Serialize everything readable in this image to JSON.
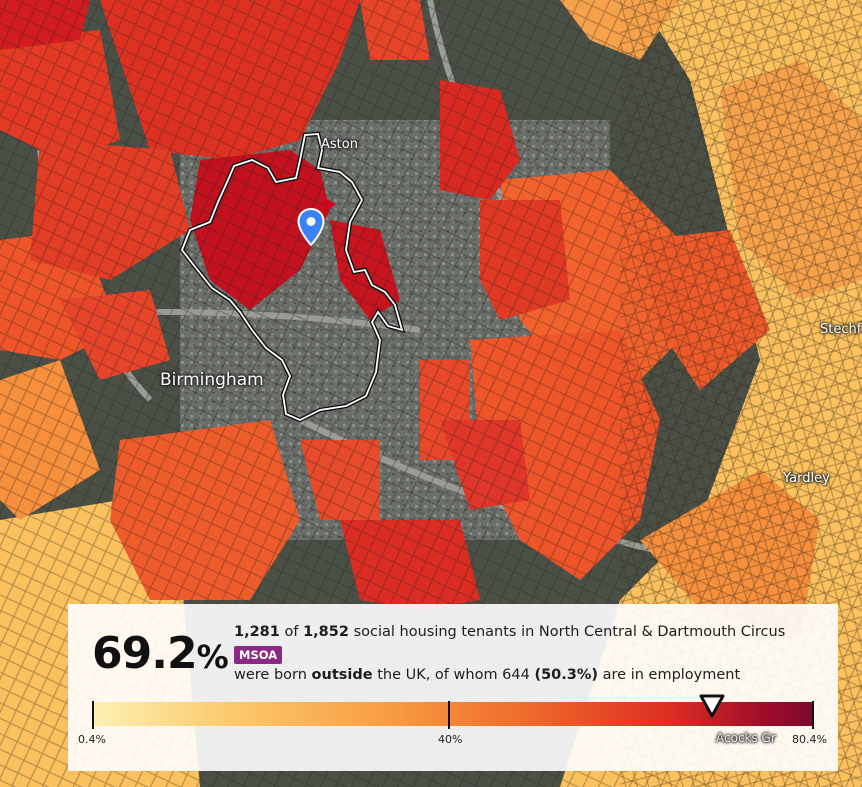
{
  "map": {
    "labels": {
      "birmingham": "Birmingham",
      "aston": "Aston",
      "yardley": "Yardley",
      "stechford": "Stechf",
      "acocks_green": "Acocks Gr"
    },
    "colors": {
      "dark_red": "#c4111f",
      "red": "#e53a24",
      "orange_red": "#f2622c",
      "orange": "#f6903c",
      "light_orange": "#fbc15e",
      "boundary": "#ffffff",
      "pin": "#3b82f6"
    },
    "icons": {
      "pin": "location-pin-icon",
      "marker": "triangle-down-icon"
    }
  },
  "info": {
    "percent_value": "69.2",
    "percent_sign": "%",
    "count": "1,281",
    "of": "of",
    "total": "1,852",
    "line1_rest": "social housing tenants in North Central & Dartmouth Circus",
    "badge": "MSOA",
    "line2_a": "were born",
    "line2_bold": "outside",
    "line2_b": "the UK, of whom 644",
    "line2_pct": "(50.3%)",
    "line2_c": "are in employment"
  },
  "scale": {
    "min_label": "0.4%",
    "mid_label": "40%",
    "max_label": "80.4%",
    "min": 0.4,
    "max": 80.4,
    "value": 69.2
  }
}
